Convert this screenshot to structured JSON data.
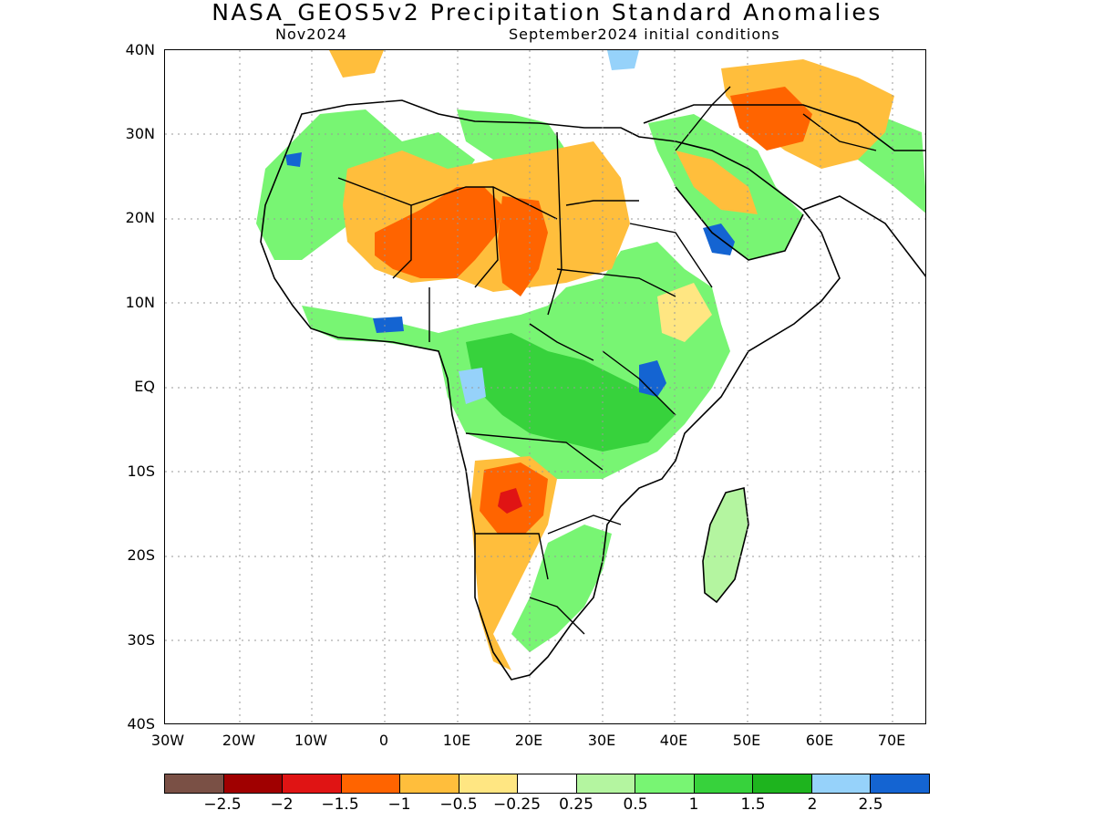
{
  "title": "NASA_GEOS5v2 Precipitation Standard Anomalies",
  "subtitle_left": "Nov2024",
  "subtitle_right": "September2024 initial conditions",
  "lat_labels": [
    "40N",
    "30N",
    "20N",
    "10N",
    "EQ",
    "10S",
    "20S",
    "30S",
    "40S"
  ],
  "lon_labels": [
    "30W",
    "20W",
    "10W",
    "0",
    "10E",
    "20E",
    "30E",
    "40E",
    "50E",
    "60E",
    "70E"
  ],
  "colorbar": {
    "colors": [
      "#7a5045",
      "#a00000",
      "#e01414",
      "#ff6400",
      "#ffbe3c",
      "#ffe682",
      "#ffffff",
      "#b4f5a0",
      "#78f573",
      "#37d23c",
      "#1eb41e",
      "#96d2fa",
      "#1464d2"
    ],
    "labels": [
      "−2.5",
      "−2",
      "−1.5",
      "−1",
      "−0.5",
      "−0.25",
      "0.25",
      "0.5",
      "1",
      "1.5",
      "2",
      "2.5"
    ]
  }
}
